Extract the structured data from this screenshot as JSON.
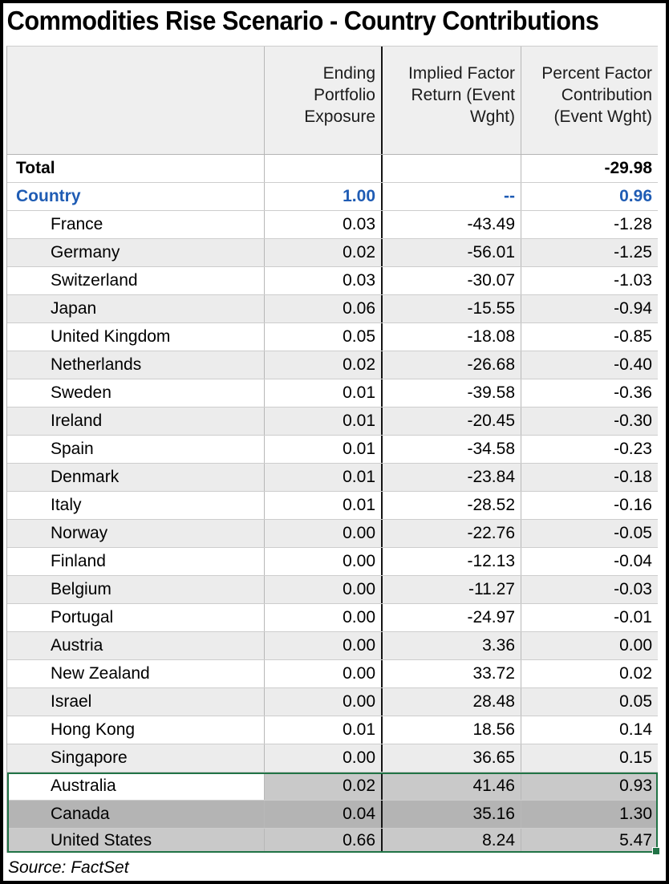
{
  "title": "Commodities Rise Scenario - Country Contributions",
  "source": "Source: FactSet",
  "colors": {
    "group_blue": "#1f5cb4",
    "selection_green": "#217346",
    "band_gray": "#ececec",
    "selection_light_gray": "#c9c9c9",
    "selection_dark_gray": "#b4b4b4"
  },
  "table": {
    "columns": [
      "Ending Portfolio Exposure",
      "Implied Factor Return (Event Wght)",
      "Percent Factor Contribution (Event Wght)"
    ],
    "rows": [
      {
        "name": "Total",
        "style": "total",
        "values": [
          "",
          "",
          "-29.98"
        ]
      },
      {
        "name": "Country",
        "style": "group",
        "values": [
          "1.00",
          "--",
          "0.96"
        ]
      },
      {
        "name": "France",
        "style": "country",
        "values": [
          "0.03",
          "-43.49",
          "-1.28"
        ]
      },
      {
        "name": "Germany",
        "style": "country",
        "values": [
          "0.02",
          "-56.01",
          "-1.25"
        ]
      },
      {
        "name": "Switzerland",
        "style": "country",
        "values": [
          "0.03",
          "-30.07",
          "-1.03"
        ]
      },
      {
        "name": "Japan",
        "style": "country",
        "values": [
          "0.06",
          "-15.55",
          "-0.94"
        ]
      },
      {
        "name": "United Kingdom",
        "style": "country",
        "values": [
          "0.05",
          "-18.08",
          "-0.85"
        ]
      },
      {
        "name": "Netherlands",
        "style": "country",
        "values": [
          "0.02",
          "-26.68",
          "-0.40"
        ]
      },
      {
        "name": "Sweden",
        "style": "country",
        "values": [
          "0.01",
          "-39.58",
          "-0.36"
        ]
      },
      {
        "name": "Ireland",
        "style": "country",
        "values": [
          "0.01",
          "-20.45",
          "-0.30"
        ]
      },
      {
        "name": "Spain",
        "style": "country",
        "values": [
          "0.01",
          "-34.58",
          "-0.23"
        ]
      },
      {
        "name": "Denmark",
        "style": "country",
        "values": [
          "0.01",
          "-23.84",
          "-0.18"
        ]
      },
      {
        "name": "Italy",
        "style": "country",
        "values": [
          "0.01",
          "-28.52",
          "-0.16"
        ]
      },
      {
        "name": "Norway",
        "style": "country",
        "values": [
          "0.00",
          "-22.76",
          "-0.05"
        ]
      },
      {
        "name": "Finland",
        "style": "country",
        "values": [
          "0.00",
          "-12.13",
          "-0.04"
        ]
      },
      {
        "name": "Belgium",
        "style": "country",
        "values": [
          "0.00",
          "-11.27",
          "-0.03"
        ]
      },
      {
        "name": "Portugal",
        "style": "country",
        "values": [
          "0.00",
          "-24.97",
          "-0.01"
        ]
      },
      {
        "name": "Austria",
        "style": "country",
        "values": [
          "0.00",
          "3.36",
          "0.00"
        ]
      },
      {
        "name": "New Zealand",
        "style": "country",
        "values": [
          "0.00",
          "33.72",
          "0.02"
        ]
      },
      {
        "name": "Israel",
        "style": "country",
        "values": [
          "0.00",
          "28.48",
          "0.05"
        ]
      },
      {
        "name": "Hong Kong",
        "style": "country",
        "values": [
          "0.01",
          "18.56",
          "0.14"
        ]
      },
      {
        "name": "Singapore",
        "style": "country",
        "values": [
          "0.00",
          "36.65",
          "0.15"
        ]
      },
      {
        "name": "Australia",
        "style": "country",
        "selected": true,
        "values": [
          "0.02",
          "41.46",
          "0.93"
        ]
      },
      {
        "name": "Canada",
        "style": "country",
        "selected": true,
        "values": [
          "0.04",
          "35.16",
          "1.30"
        ]
      },
      {
        "name": "United States",
        "style": "country",
        "selected": true,
        "values": [
          "0.66",
          "8.24",
          "5.47"
        ]
      }
    ]
  }
}
